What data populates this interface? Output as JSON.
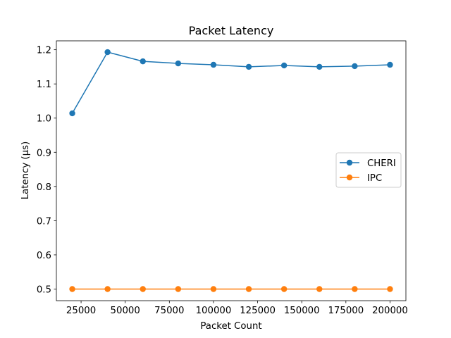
{
  "chart_data": {
    "type": "line",
    "title": "Packet Latency",
    "xlabel": "Packet Count",
    "ylabel": "Latency (µs)",
    "x": [
      20000,
      40000,
      60000,
      80000,
      100000,
      120000,
      140000,
      160000,
      180000,
      200000
    ],
    "xlim": [
      11000,
      209000
    ],
    "ylim": [
      0.466,
      1.226
    ],
    "xticks": [
      25000,
      50000,
      75000,
      100000,
      125000,
      150000,
      175000,
      200000
    ],
    "xtick_labels": [
      "25000",
      "50000",
      "75000",
      "100000",
      "125000",
      "150000",
      "175000",
      "200000"
    ],
    "yticks": [
      0.5,
      0.6,
      0.7,
      0.8,
      0.9,
      1.0,
      1.1,
      1.2
    ],
    "ytick_labels": [
      "0.5",
      "0.6",
      "0.7",
      "0.8",
      "0.9",
      "1.0",
      "1.1",
      "1.2"
    ],
    "grid": false,
    "legend_position": "center-right",
    "series": [
      {
        "name": "CHERI",
        "color": "#1f77b4",
        "marker": "circle",
        "values": [
          1.014,
          1.193,
          1.166,
          1.16,
          1.156,
          1.15,
          1.154,
          1.15,
          1.152,
          1.156
        ]
      },
      {
        "name": "IPC",
        "color": "#ff7f0e",
        "marker": "circle",
        "values": [
          0.5,
          0.5,
          0.5,
          0.5,
          0.5,
          0.5,
          0.5,
          0.5,
          0.5,
          0.5
        ]
      }
    ]
  }
}
